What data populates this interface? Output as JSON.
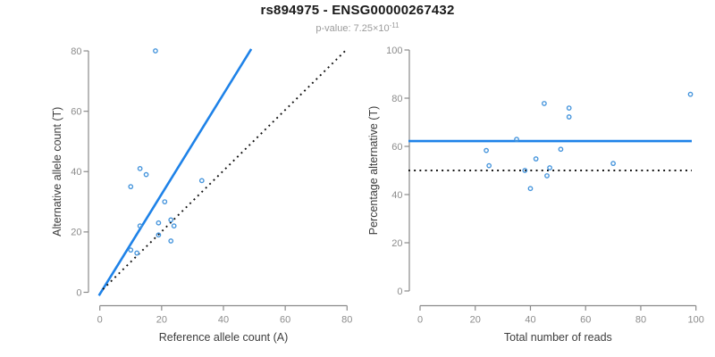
{
  "figure": {
    "title": "rs894975 - ENSG00000267432",
    "pvalue": {
      "base": "p-value: 7.25×10",
      "exponent": "-11"
    }
  },
  "colors": {
    "accent_blue": "#1e82e8",
    "point_blue": "#4494dc",
    "dotted_black": "#111111",
    "axis_gray": "#8a8a8a",
    "tick_label_gray": "#8c8c8c",
    "axis_title_dark": "#3c3c3c",
    "subtitle_gray": "#9b9b9b"
  },
  "chart_data": [
    {
      "type": "scatter",
      "panel": "left",
      "xlabel": "Reference allele count (A)",
      "ylabel": "Alternative allele count (T)",
      "xlim": [
        0,
        80
      ],
      "ylim": [
        0,
        80
      ],
      "xticks": [
        0,
        20,
        40,
        60,
        80
      ],
      "yticks": [
        0,
        20,
        40,
        60,
        80
      ],
      "grid": false,
      "legend": false,
      "points": [
        [
          18,
          80
        ],
        [
          13,
          41
        ],
        [
          15,
          39
        ],
        [
          10,
          35
        ],
        [
          33,
          37
        ],
        [
          21,
          30
        ],
        [
          19,
          23
        ],
        [
          23,
          24
        ],
        [
          24,
          22
        ],
        [
          19,
          19
        ],
        [
          23,
          17
        ],
        [
          13,
          22
        ],
        [
          10,
          14
        ],
        [
          12,
          13
        ]
      ],
      "lines": [
        {
          "name": "fit-line",
          "style": "solid",
          "color": "accent_blue",
          "x1": -0.3,
          "y1": -1.1,
          "x2": 49,
          "y2": 80.6
        },
        {
          "name": "identity-line",
          "style": "dotted",
          "color": "dotted_black",
          "x1": 1,
          "y1": 1,
          "x2": 79.8,
          "y2": 80.4
        }
      ]
    },
    {
      "type": "scatter",
      "panel": "right",
      "xlabel": "Total number of reads",
      "ylabel": "Percentage alternative (T)",
      "xlim": [
        0,
        100
      ],
      "ylim": [
        0,
        100
      ],
      "xticks": [
        0,
        20,
        40,
        60,
        80,
        100
      ],
      "yticks": [
        0,
        20,
        40,
        60,
        80,
        100
      ],
      "grid": false,
      "legend": false,
      "points": [
        [
          98,
          81.6
        ],
        [
          54,
          75.9
        ],
        [
          54,
          72.2
        ],
        [
          45,
          77.8
        ],
        [
          70,
          52.9
        ],
        [
          51,
          58.8
        ],
        [
          42,
          54.8
        ],
        [
          47,
          51.1
        ],
        [
          46,
          47.8
        ],
        [
          38,
          50.0
        ],
        [
          40,
          42.5
        ],
        [
          35,
          62.9
        ],
        [
          24,
          58.3
        ],
        [
          25,
          52.0
        ]
      ],
      "lines": [
        {
          "name": "mean-percentage-line",
          "style": "solid",
          "color": "accent_blue",
          "y": 62.2
        },
        {
          "name": "fifty-percent-line",
          "style": "dotted",
          "color": "dotted_black",
          "y": 50
        }
      ]
    }
  ]
}
